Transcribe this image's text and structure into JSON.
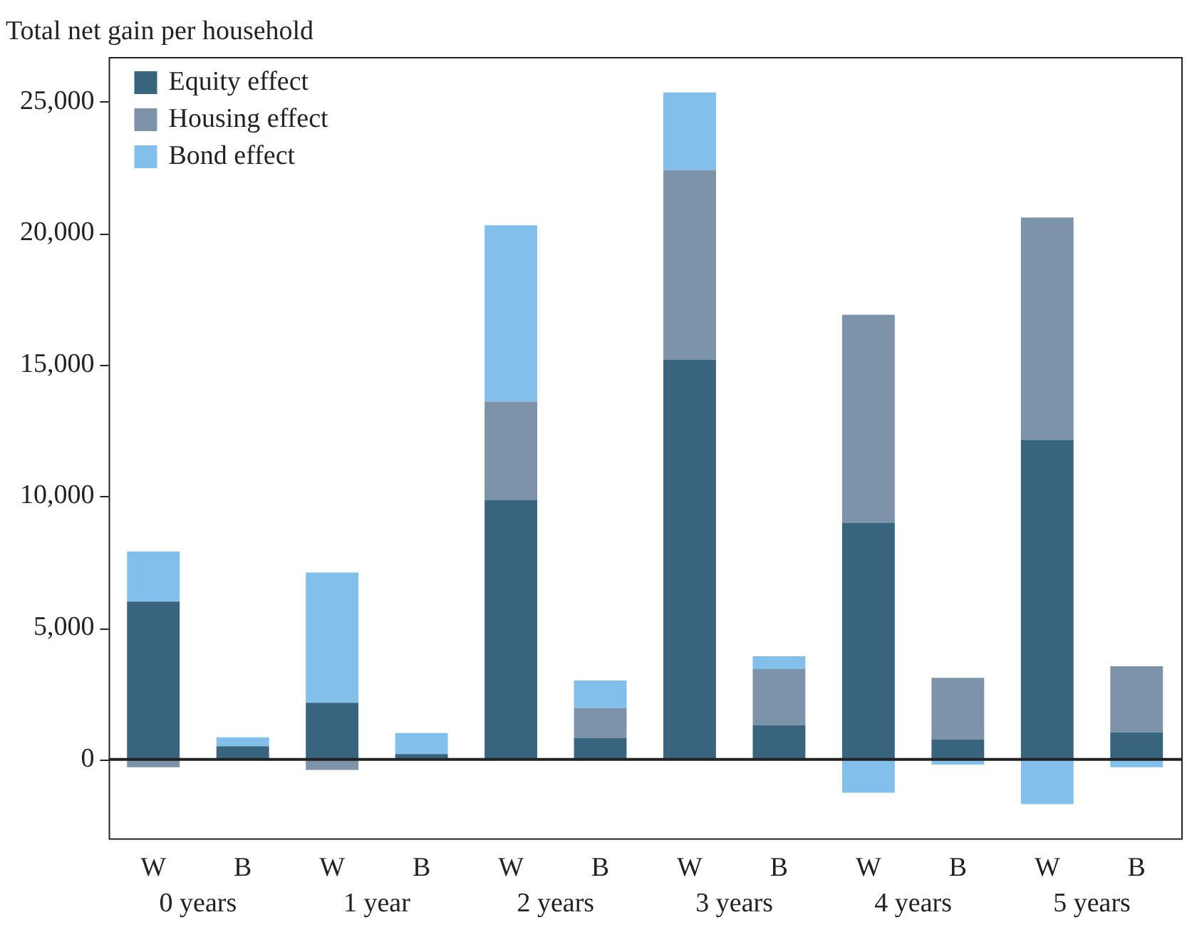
{
  "chart_data": {
    "type": "bar",
    "stacked": true,
    "ylabel": "Total net gain per household",
    "categories": [
      "W",
      "B",
      "W",
      "B",
      "W",
      "B",
      "W",
      "B",
      "W",
      "B",
      "W",
      "B"
    ],
    "series": [
      {
        "name": "Equity effect",
        "color": "#38647e",
        "values": [
          6000,
          500,
          2150,
          200,
          9850,
          800,
          15200,
          1300,
          9000,
          760,
          12150,
          1030
        ]
      },
      {
        "name": "Housing effect",
        "color": "#7d93aa",
        "values": [
          -300,
          null,
          -400,
          null,
          3750,
          1150,
          7200,
          2130,
          7900,
          2340,
          8450,
          2510
        ]
      },
      {
        "name": "Bond effect",
        "color": "#82bfea",
        "values": [
          1900,
          340,
          4950,
          800,
          6700,
          1050,
          2950,
          490,
          -1270,
          -200,
          -1700,
          -300
        ]
      }
    ],
    "annotations": [
      "0 years",
      "1 year",
      "2 years",
      "3 years",
      "4 years",
      "5 years"
    ],
    "ylim": [
      -3000,
      26700
    ],
    "yticks": [
      0,
      {
        "value": 5000,
        "label": "5,000"
      },
      {
        "value": 10000,
        "label": "10,000"
      },
      {
        "value": 15000,
        "label": "15,000"
      },
      {
        "value": 20000,
        "label": "20,000"
      },
      {
        "value": 25000,
        "label": "25,000"
      }
    ],
    "legend": "top left"
  }
}
